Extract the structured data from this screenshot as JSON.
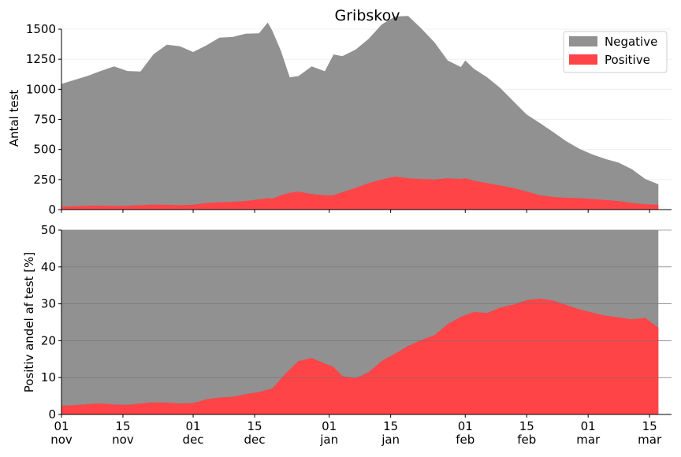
{
  "chart_data": [
    {
      "type": "area",
      "title": "Gribskov",
      "xlabel": "",
      "ylabel": "Antal test",
      "ylim": [
        0,
        1500
      ],
      "yticks": [
        0,
        250,
        500,
        750,
        1000,
        1250,
        1500
      ],
      "legend": {
        "placement": "top-right",
        "entries": [
          "Negative",
          "Positive"
        ]
      },
      "grid": true,
      "x": [
        "2021-11-01",
        "2021-11-04",
        "2021-11-07",
        "2021-11-10",
        "2021-11-13",
        "2021-11-16",
        "2021-11-19",
        "2021-11-22",
        "2021-11-25",
        "2021-11-28",
        "2021-12-01",
        "2021-12-04",
        "2021-12-07",
        "2021-12-10",
        "2021-12-13",
        "2021-12-16",
        "2021-12-18",
        "2021-12-19",
        "2021-12-21",
        "2021-12-23",
        "2021-12-25",
        "2021-12-28",
        "2021-12-31",
        "2022-01-02",
        "2022-01-04",
        "2022-01-07",
        "2022-01-10",
        "2022-01-13",
        "2022-01-16",
        "2022-01-19",
        "2022-01-22",
        "2022-01-25",
        "2022-01-28",
        "2022-01-31",
        "2022-02-01",
        "2022-02-03",
        "2022-02-06",
        "2022-02-09",
        "2022-02-12",
        "2022-02-15",
        "2022-02-18",
        "2022-02-21",
        "2022-02-24",
        "2022-02-27",
        "2022-03-02",
        "2022-03-05",
        "2022-03-08",
        "2022-03-11",
        "2022-03-14",
        "2022-03-17"
      ],
      "series": [
        {
          "name": "Negative",
          "color": "#909190",
          "values": [
            1020,
            1050,
            1080,
            1120,
            1160,
            1120,
            1110,
            1250,
            1330,
            1320,
            1270,
            1310,
            1370,
            1370,
            1390,
            1380,
            1460,
            1400,
            1200,
            960,
            960,
            1060,
            1030,
            1170,
            1130,
            1150,
            1200,
            1290,
            1330,
            1350,
            1250,
            1140,
            980,
            930,
            980,
            930,
            880,
            810,
            720,
            640,
            600,
            540,
            470,
            410,
            370,
            340,
            320,
            280,
            210,
            170
          ]
        },
        {
          "name": "Positive",
          "color": "#ff4448",
          "values": [
            25,
            28,
            32,
            33,
            30,
            32,
            38,
            42,
            40,
            38,
            40,
            55,
            60,
            65,
            72,
            85,
            95,
            90,
            120,
            140,
            150,
            130,
            120,
            120,
            145,
            180,
            220,
            250,
            275,
            260,
            255,
            250,
            260,
            255,
            260,
            240,
            220,
            200,
            180,
            150,
            120,
            105,
            98,
            95,
            88,
            80,
            70,
            55,
            45,
            40
          ]
        }
      ]
    },
    {
      "type": "area",
      "title": "",
      "xlabel": "",
      "ylabel": "Positiv andel af test [%]",
      "ylim": [
        0,
        50
      ],
      "yticks": [
        0,
        10,
        20,
        30,
        40,
        50
      ],
      "grid": true,
      "x": [
        "2021-11-01",
        "2021-11-04",
        "2021-11-07",
        "2021-11-10",
        "2021-11-13",
        "2021-11-16",
        "2021-11-19",
        "2021-11-22",
        "2021-11-25",
        "2021-11-28",
        "2021-12-01",
        "2021-12-04",
        "2021-12-07",
        "2021-12-10",
        "2021-12-13",
        "2021-12-16",
        "2021-12-19",
        "2021-12-22",
        "2021-12-25",
        "2021-12-28",
        "2021-12-31",
        "2022-01-02",
        "2022-01-04",
        "2022-01-07",
        "2022-01-10",
        "2022-01-13",
        "2022-01-16",
        "2022-01-19",
        "2022-01-22",
        "2022-01-25",
        "2022-01-28",
        "2022-01-31",
        "2022-02-03",
        "2022-02-06",
        "2022-02-09",
        "2022-02-12",
        "2022-02-15",
        "2022-02-18",
        "2022-02-21",
        "2022-02-24",
        "2022-02-27",
        "2022-03-02",
        "2022-03-05",
        "2022-03-08",
        "2022-03-11",
        "2022-03-14",
        "2022-03-17"
      ],
      "series": [
        {
          "name": "",
          "color": "#909190",
          "values": [
            50,
            50,
            50,
            50,
            50,
            50,
            50,
            50,
            50,
            50,
            50,
            50,
            50,
            50,
            50,
            50,
            50,
            50,
            50,
            50,
            50,
            50,
            50,
            50,
            50,
            50,
            50,
            50,
            50,
            50,
            50,
            50,
            50,
            50,
            50,
            50,
            50,
            50,
            50,
            50,
            50,
            50,
            50,
            50,
            50,
            50,
            50
          ]
        },
        {
          "name": "",
          "color": "#ff4448",
          "values": [
            2.4,
            2.5,
            2.8,
            3.0,
            2.7,
            2.6,
            3.0,
            3.3,
            3.2,
            3.0,
            3.1,
            4.1,
            4.6,
            4.8,
            5.5,
            6.1,
            7.0,
            11.0,
            14.5,
            15.3,
            13.8,
            12.9,
            10.4,
            9.8,
            11.5,
            14.5,
            16.5,
            18.6,
            20.2,
            21.5,
            24.5,
            26.5,
            27.8,
            27.5,
            29.0,
            29.8,
            31.0,
            31.4,
            30.9,
            29.7,
            28.5,
            27.6,
            26.8,
            26.3,
            25.8,
            26.2,
            23.5
          ]
        }
      ]
    }
  ],
  "x_ticks": [
    {
      "date": "2021-11-01",
      "day": "01",
      "month": "nov"
    },
    {
      "date": "2021-11-15",
      "day": "15",
      "month": "nov"
    },
    {
      "date": "2021-12-01",
      "day": "01",
      "month": "dec"
    },
    {
      "date": "2021-12-15",
      "day": "15",
      "month": "dec"
    },
    {
      "date": "2022-01-01",
      "day": "01",
      "month": "jan"
    },
    {
      "date": "2022-01-15",
      "day": "15",
      "month": "jan"
    },
    {
      "date": "2022-02-01",
      "day": "01",
      "month": "feb"
    },
    {
      "date": "2022-02-15",
      "day": "15",
      "month": "feb"
    },
    {
      "date": "2022-03-01",
      "day": "01",
      "month": "mar"
    },
    {
      "date": "2022-03-15",
      "day": "15",
      "month": "mar"
    }
  ],
  "x_range": [
    "2021-11-01",
    "2022-03-20"
  ]
}
